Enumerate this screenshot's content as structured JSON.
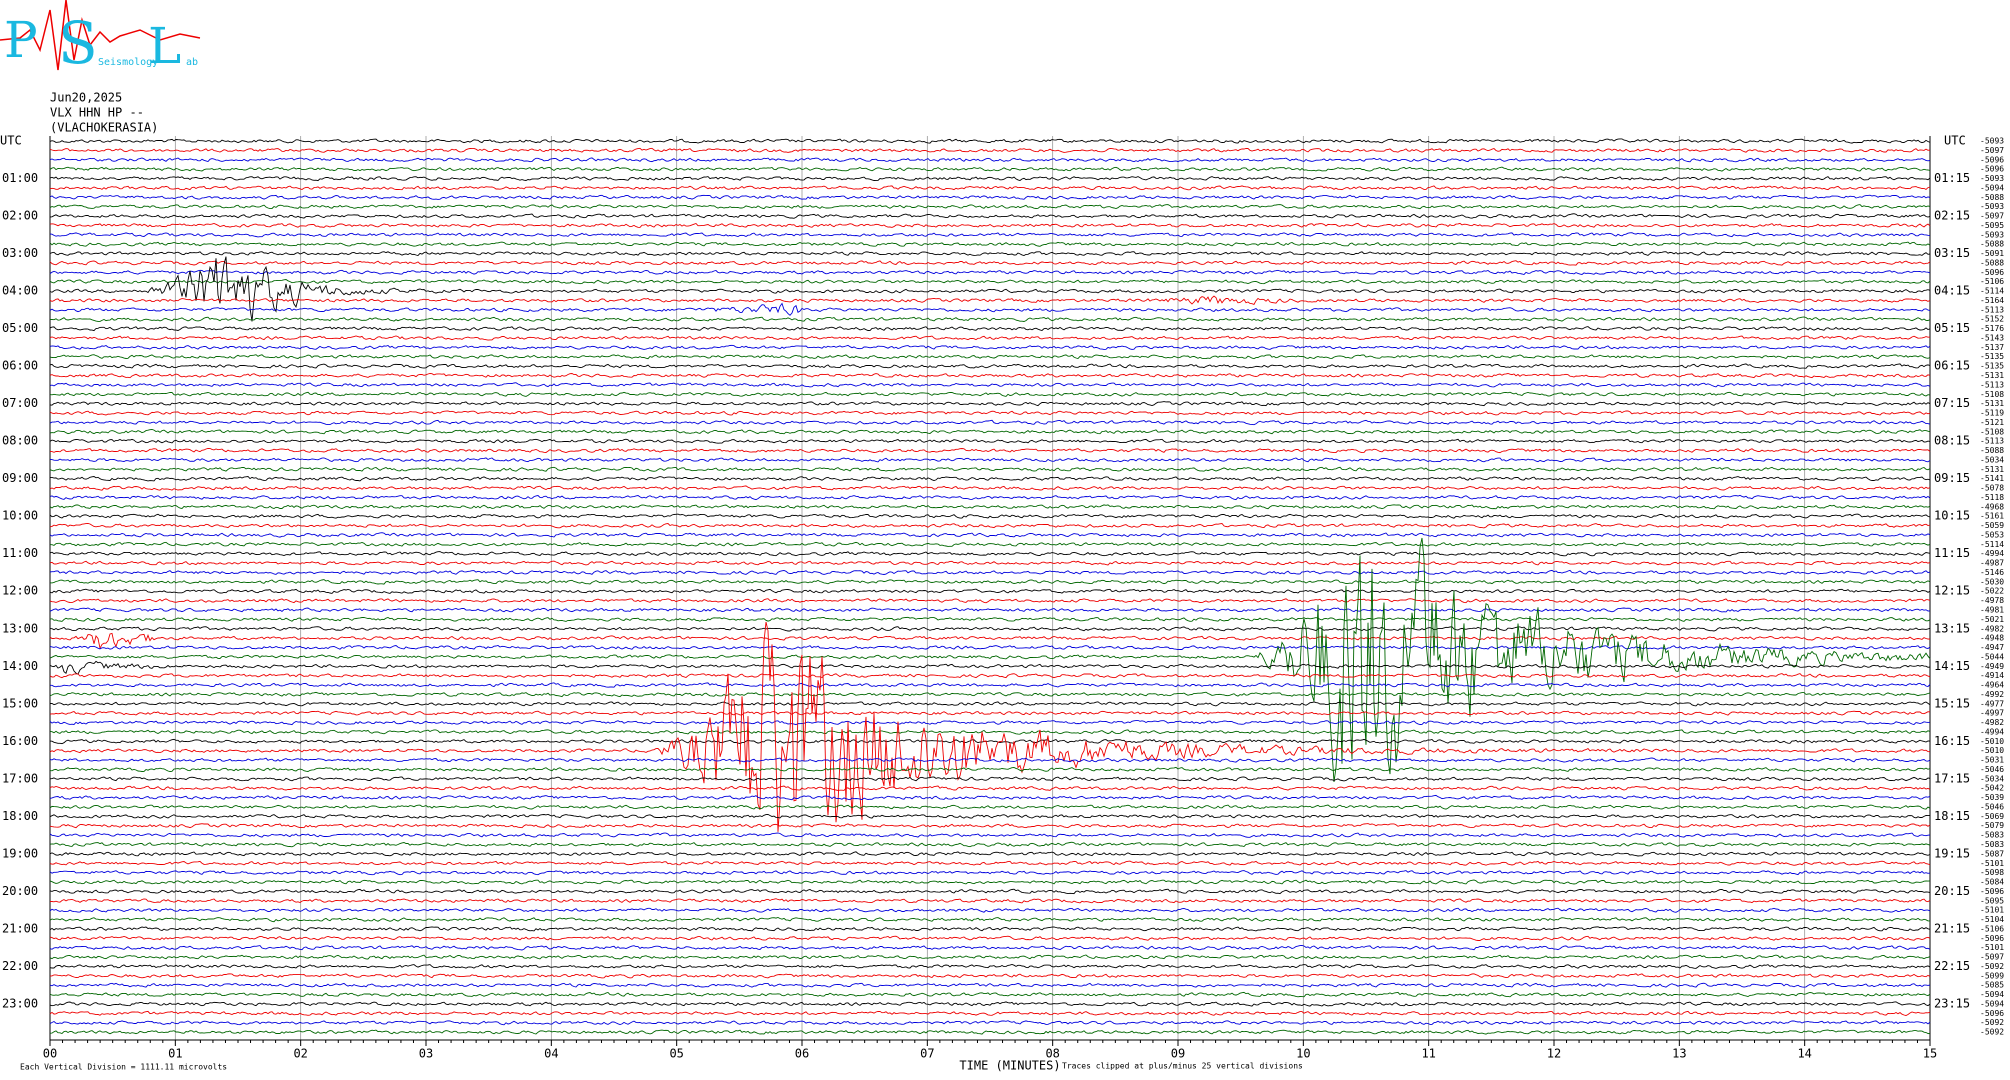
{
  "logo": {
    "letters": [
      "P",
      "S",
      "L"
    ],
    "small": [
      "Seismology",
      "ab"
    ]
  },
  "header": {
    "date": "Jun20,2025",
    "channel": "VLX HHN HP --",
    "station": "(VLACHOKERASIA)"
  },
  "left_axis": {
    "title": "UTC",
    "labels": [
      "01:00",
      "02:00",
      "03:00",
      "04:00",
      "05:00",
      "06:00",
      "07:00",
      "08:00",
      "09:00",
      "10:00",
      "11:00",
      "12:00",
      "13:00",
      "14:00",
      "15:00",
      "16:00",
      "17:00",
      "18:00",
      "19:00",
      "20:00",
      "21:00",
      "22:00",
      "23:00"
    ]
  },
  "right_axis": {
    "title": "UTC",
    "labels": [
      "01:15",
      "02:15",
      "03:15",
      "04:15",
      "05:15",
      "06:15",
      "07:15",
      "08:15",
      "09:15",
      "10:15",
      "11:15",
      "12:15",
      "13:15",
      "14:15",
      "15:15",
      "16:15",
      "17:15",
      "18:15",
      "19:15",
      "20:15",
      "21:15",
      "22:15",
      "23:15"
    ]
  },
  "trace_offsets": [
    "-5093",
    "-5097",
    "-5096",
    "-5096",
    "-5093",
    "-5094",
    "-5088",
    "-5093",
    "-5097",
    "-5095",
    "-5093",
    "-5088",
    "-5091",
    "-5088",
    "-5096",
    "-5106",
    "-5114",
    "-5164",
    "-5113",
    "-5152",
    "-5176",
    "-5143",
    "-5137",
    "-5135",
    "-5135",
    "-5131",
    "-5113",
    "-5108",
    "-5131",
    "-5119",
    "-5121",
    "-5108",
    "-5113",
    "-5088",
    "-5034",
    "-5131",
    "-5141",
    "-5078",
    "-5118",
    "-4968",
    "-5161",
    "-5059",
    "-5053",
    "-5114",
    "-4994",
    "-4987",
    "-5146",
    "-5030",
    "-5022",
    "-4978",
    "-4981",
    "-5021",
    "-4982",
    "-4948",
    "-4947",
    "-5044",
    "-4949",
    "-4914",
    "-4964",
    "-4992",
    "-4977",
    "-4997",
    "-4982",
    "-4994",
    "-5010",
    "-5010",
    "-5031",
    "-5046",
    "-5034",
    "-5042",
    "-5039",
    "-5046",
    "-5069",
    "-5079",
    "-5083",
    "-5083",
    "-5087",
    "-5101",
    "-5098",
    "-5084",
    "-5096",
    "-5095",
    "-5101",
    "-5104",
    "-5106",
    "-5096",
    "-5101",
    "-5097",
    "-5092",
    "-5099",
    "-5085",
    "-5094",
    "-5094",
    "-5096",
    "-5092",
    "-5092"
  ],
  "x_axis": {
    "title": "TIME (MINUTES)",
    "ticks": [
      "00",
      "01",
      "02",
      "03",
      "04",
      "05",
      "06",
      "07",
      "08",
      "09",
      "10",
      "11",
      "12",
      "13",
      "14",
      "15"
    ]
  },
  "footer": {
    "scale": "Each Vertical Division = 1111.11 microvolts",
    "clip": "Traces clipped at plus/minus 25 vertical divisions"
  }
}
